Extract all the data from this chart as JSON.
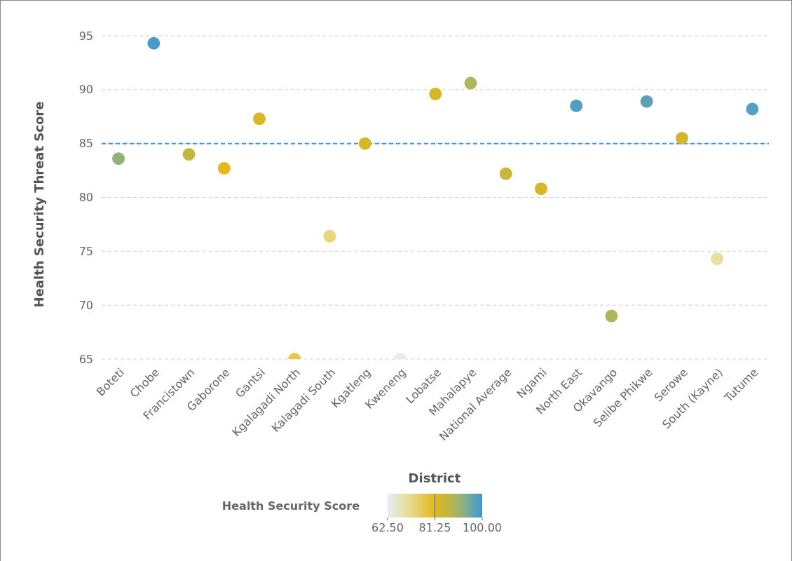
{
  "chart_data": {
    "type": "scatter",
    "xlabel": "District",
    "ylabel": "Health Security Threat Score",
    "clabel": "Health Security Score",
    "categories": [
      "Boteti",
      "Chobe",
      "Francistown",
      "Gaborone",
      "Gantsi",
      "Kgalagadi North",
      "Kalagadi South",
      "Kgatleng",
      "Kweneng",
      "Lobatse",
      "Mahalapye",
      "National Average",
      "Ngami",
      "North East",
      "Okavango",
      "Selibe Phikwe",
      "Serowe",
      "South (Kayne)",
      "Tutume"
    ],
    "values": [
      83.6,
      94.3,
      84.0,
      82.7,
      87.3,
      65.0,
      76.4,
      85.0,
      65.0,
      89.6,
      90.6,
      82.2,
      80.8,
      88.5,
      69.0,
      88.9,
      85.5,
      74.3,
      88.2
    ],
    "cvalues": [
      92,
      99,
      86,
      81,
      83,
      77,
      73,
      83,
      63,
      83,
      89,
      85,
      83,
      98,
      89,
      97,
      84,
      70,
      98
    ],
    "clim": [
      62.5,
      100
    ],
    "cticks": [
      {
        "value": 62.5,
        "label": "62.50"
      },
      {
        "value": 81.25,
        "label": "81.25"
      },
      {
        "value": 100,
        "label": "100.00"
      }
    ],
    "ylim": [
      65,
      95
    ],
    "yticks": [
      65,
      70,
      75,
      80,
      85,
      90,
      95
    ],
    "grid": "y",
    "marker": "circle",
    "ref_lines": [
      {
        "axis": "y",
        "value": 85,
        "color": "#4a90d9",
        "line_style": "dashed"
      }
    ]
  }
}
